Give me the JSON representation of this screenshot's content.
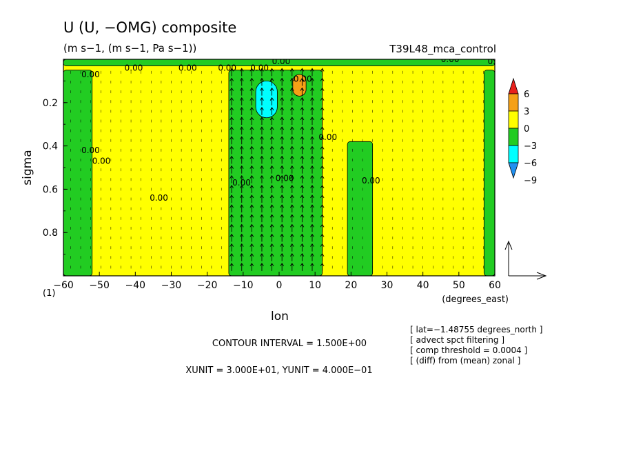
{
  "chart_data": {
    "type": "heatmap",
    "title": "U (U, −OMG) composite",
    "subtitle": "(m s−1, (m s−1, Pa s−1))",
    "run_label": "T39L48_mca_control",
    "xlabel": "lon",
    "x_units": "(degrees_east)",
    "ylabel": "sigma",
    "panel_marker": "(1)",
    "xlim": [
      -60,
      60
    ],
    "ylim": [
      0.0,
      1.0
    ],
    "y_reversed": true,
    "x_ticks": [
      -60,
      -50,
      -40,
      -30,
      -20,
      -10,
      0,
      10,
      20,
      30,
      40,
      50,
      60
    ],
    "x_tick_labels": [
      "−60",
      "−50",
      "−40",
      "−30",
      "−20",
      "−10",
      "0",
      "10",
      "20",
      "30",
      "40",
      "50",
      "60"
    ],
    "y_ticks": [
      0.2,
      0.4,
      0.6,
      0.8
    ],
    "y_tick_labels": [
      "0.2",
      "0.4",
      "0.6",
      "0.8"
    ],
    "contour_label": "0.00",
    "contour_interval_text": "CONTOUR INTERVAL = 1.500E+00",
    "unit_text": "XUNIT = 3.000E+01, YUNIT = 4.000E−01",
    "info_lines": [
      "[ lat=−1.48755 degrees_north ]",
      "[ advect spct filtering ]",
      "[ comp threshold = 0.0004 ]",
      "[ (diff) from (mean) zonal ]"
    ],
    "colorbar": {
      "labels": [
        "6",
        "3",
        "0",
        "−3",
        "−6",
        "−9"
      ],
      "bins": [
        {
          "range": [
            6,
            9
          ],
          "color": "#e8201c"
        },
        {
          "range": [
            3,
            6
          ],
          "color": "#f5a016"
        },
        {
          "range": [
            0,
            3
          ],
          "color": "#ffff00"
        },
        {
          "range": [
            -3,
            0
          ],
          "color": "#22cc22"
        },
        {
          "range": [
            -6,
            -3
          ],
          "color": "#00ffff"
        },
        {
          "range": [
            -9,
            -6
          ],
          "color": "#2190f0"
        }
      ]
    },
    "regions": [
      {
        "name": "positive-background",
        "level": 0,
        "x": [
          -60,
          60
        ],
        "y": [
          0.0,
          1.0
        ]
      },
      {
        "name": "negative-band-top",
        "level": -3,
        "x": [
          -60,
          60
        ],
        "y": [
          0.0,
          0.03
        ]
      },
      {
        "name": "negative-west-column",
        "level": -3,
        "x": [
          -60,
          -52
        ],
        "y": [
          0.05,
          1.0
        ]
      },
      {
        "name": "negative-central-column",
        "level": -3,
        "x": [
          -14,
          12
        ],
        "y": [
          0.05,
          1.0
        ]
      },
      {
        "name": "negative-east-column",
        "level": -3,
        "x": [
          19,
          26
        ],
        "y": [
          0.38,
          1.0
        ]
      },
      {
        "name": "negative-far-east-column",
        "level": -3,
        "x": [
          57,
          60
        ],
        "y": [
          0.05,
          1.0
        ]
      },
      {
        "name": "cyan-core",
        "level": -6,
        "x": [
          -6.5,
          -0.5
        ],
        "y": [
          0.1,
          0.27
        ]
      },
      {
        "name": "orange-core",
        "level": 3,
        "x": [
          3.8,
          7.5
        ],
        "y": [
          0.07,
          0.17
        ]
      }
    ],
    "vector_scale": {
      "x": 30.0,
      "y": 0.4
    }
  }
}
